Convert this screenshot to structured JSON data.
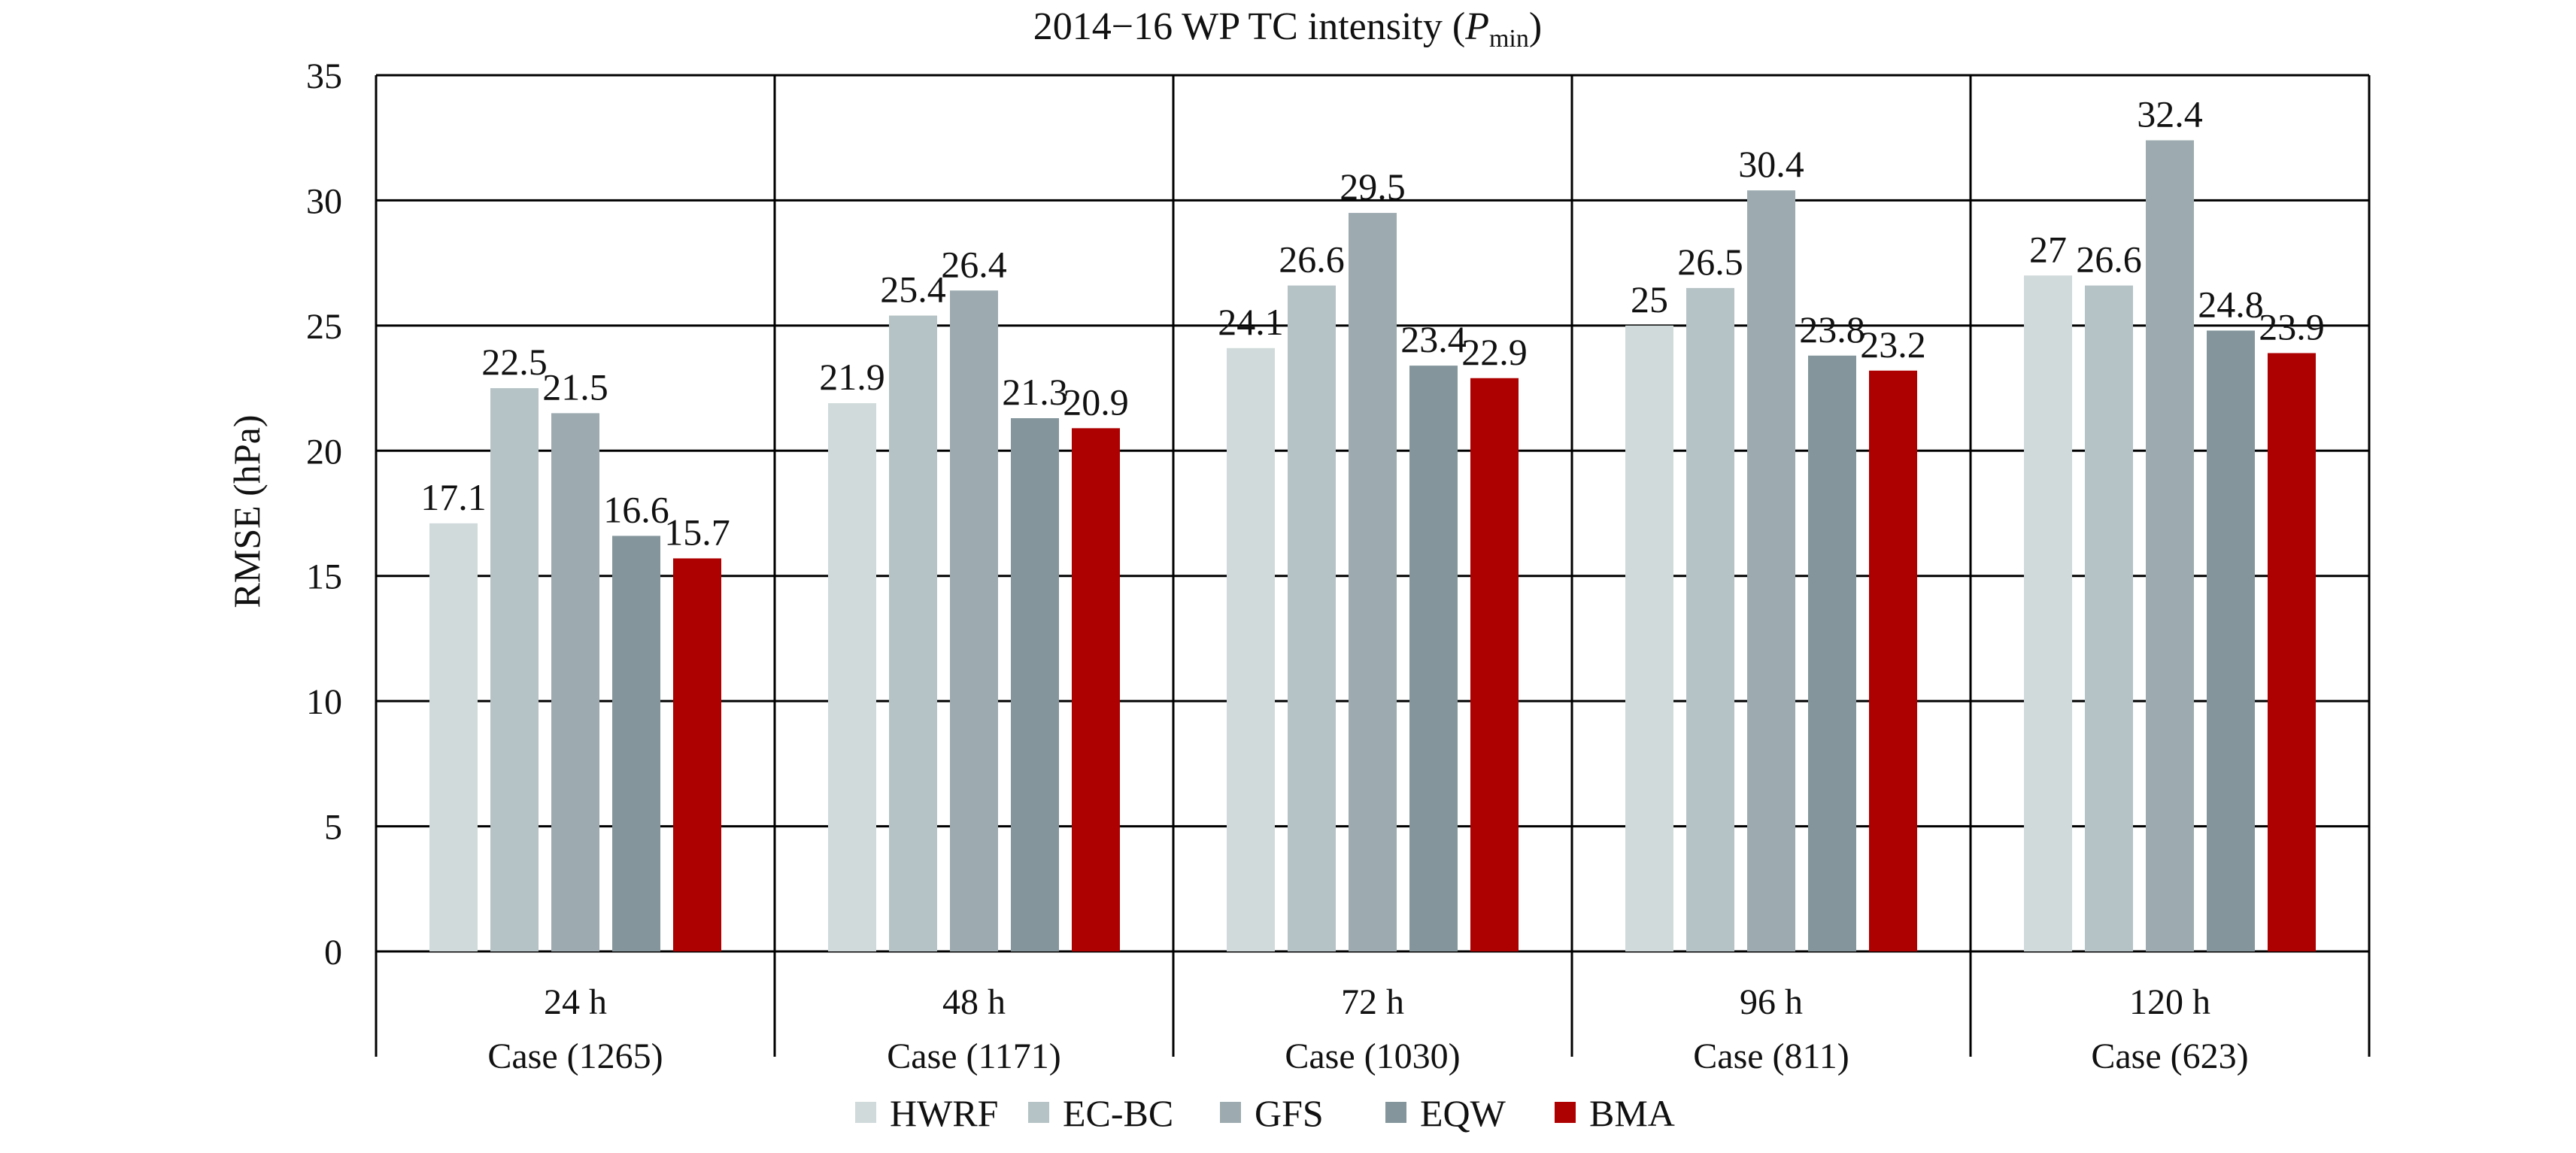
{
  "chart_data": {
    "type": "bar",
    "title_prefix": "2014−16 WP TC intensity  (",
    "title_var": "P",
    "title_sub": "min",
    "title_suffix": ")",
    "ylabel": "RMSE (hPa)",
    "ylim": [
      0,
      35
    ],
    "yticks": [
      0,
      5,
      10,
      15,
      20,
      25,
      30,
      35
    ],
    "grid": true,
    "legend_position": "bottom-center",
    "groups": [
      {
        "lead": "24 h",
        "cases": "Case (1265)"
      },
      {
        "lead": "48 h",
        "cases": "Case (1171)"
      },
      {
        "lead": "72 h",
        "cases": "Case (1030)"
      },
      {
        "lead": "96 h",
        "cases": "Case (811)"
      },
      {
        "lead": "120 h",
        "cases": "Case (623)"
      }
    ],
    "series": [
      {
        "name": "HWRF",
        "color": "#d0dadb",
        "values": [
          17.1,
          21.9,
          24.1,
          25,
          27
        ]
      },
      {
        "name": "EC-BC",
        "color": "#b6c3c6",
        "values": [
          22.5,
          25.4,
          26.6,
          26.5,
          26.6
        ]
      },
      {
        "name": "GFS",
        "color": "#9dabb0",
        "values": [
          21.5,
          26.4,
          29.5,
          30.4,
          32.4
        ]
      },
      {
        "name": "EQW",
        "color": "#84969c",
        "values": [
          16.6,
          21.3,
          23.4,
          23.8,
          24.8
        ]
      },
      {
        "name": "BMA",
        "color": "#ad0000",
        "values": [
          15.7,
          20.9,
          22.9,
          23.2,
          23.9
        ]
      }
    ]
  }
}
